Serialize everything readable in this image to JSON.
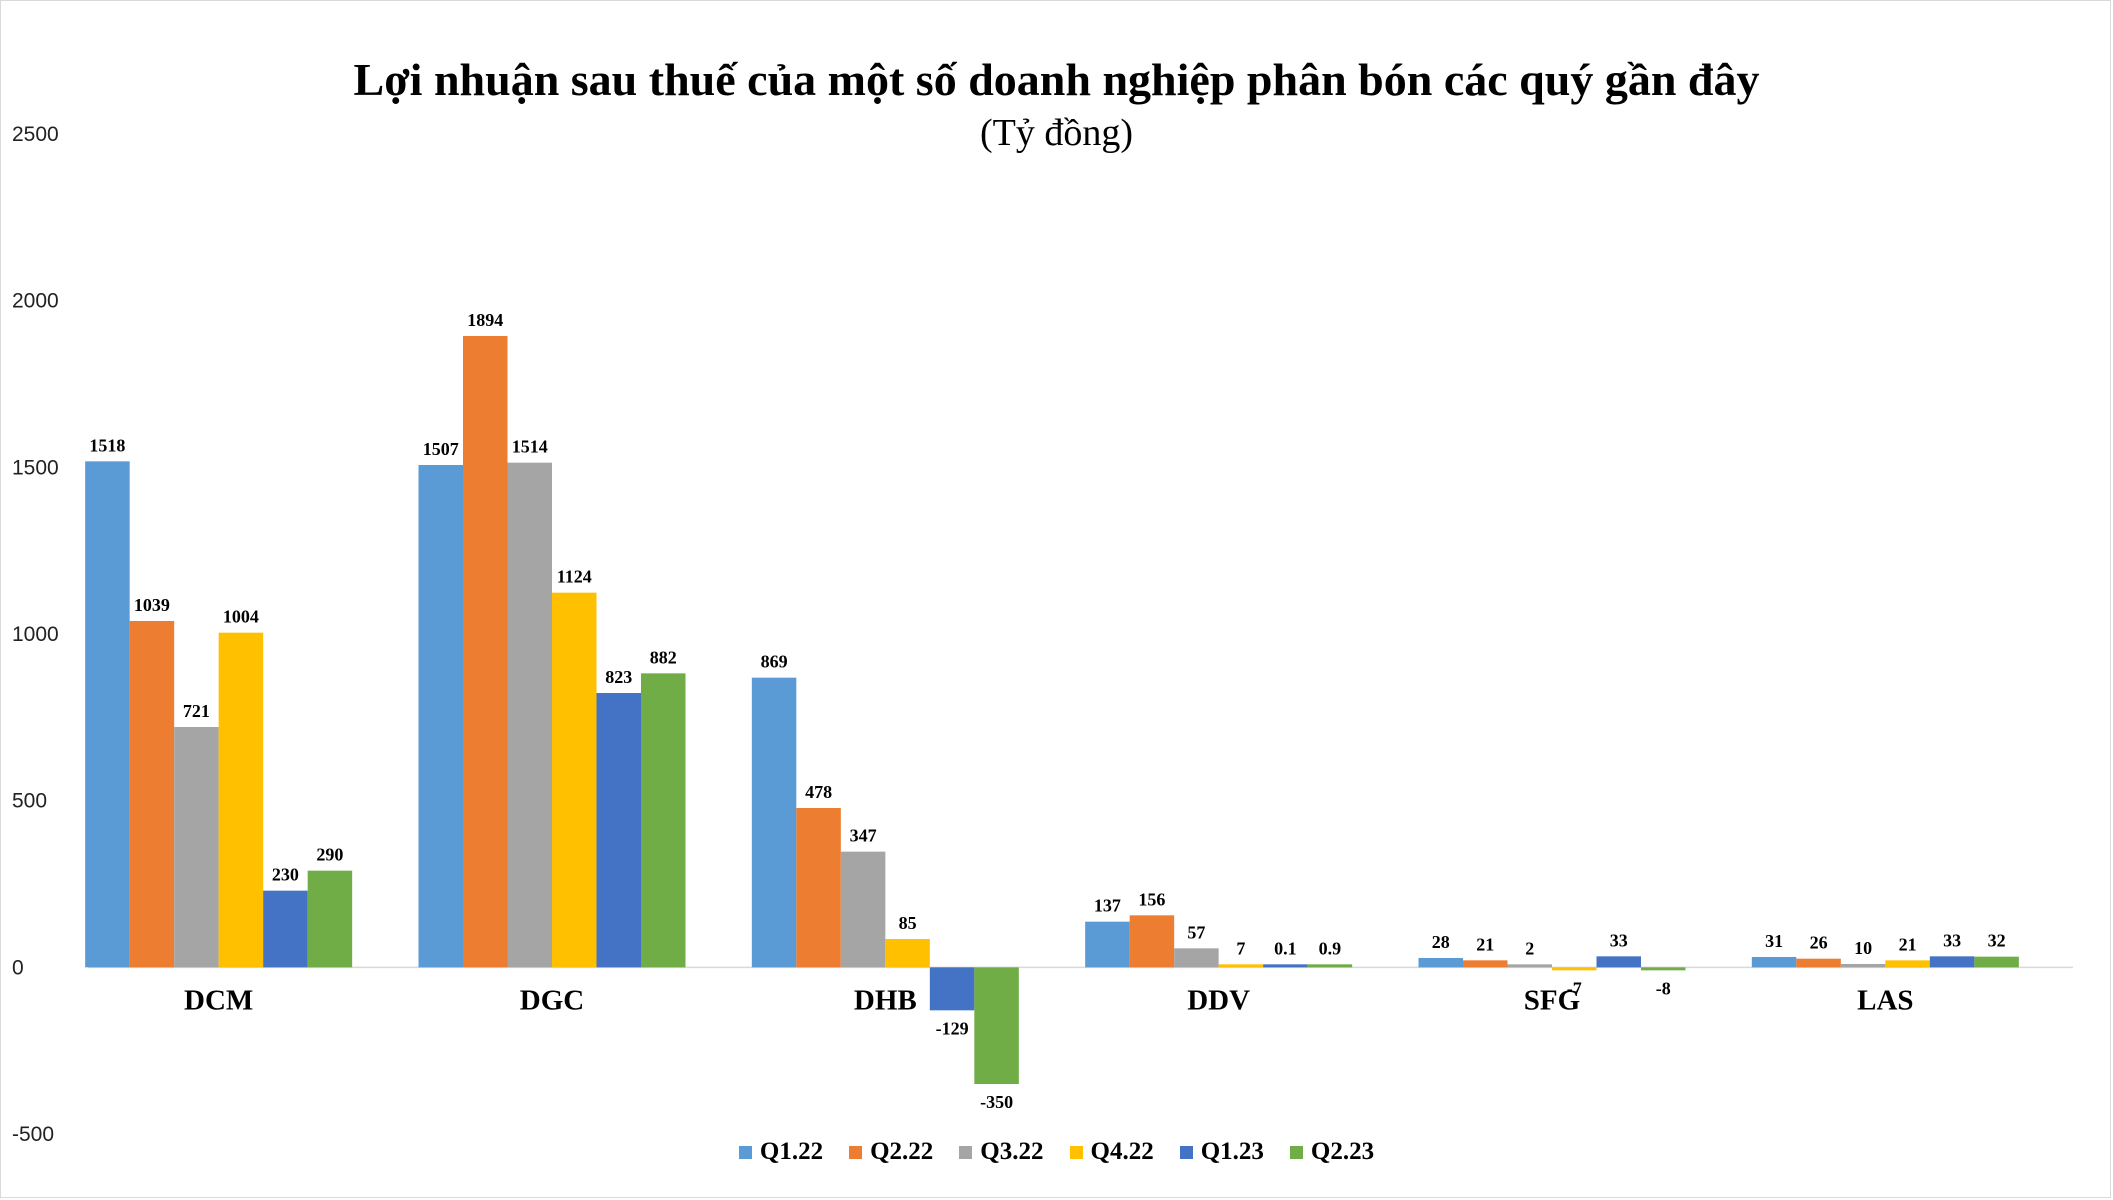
{
  "chart_data": {
    "type": "bar",
    "title": "Lợi nhuận sau thuế của một số doanh nghiệp phân bón các quý gần đây",
    "subtitle": "(Tỷ đồng)",
    "categories": [
      "DCM",
      "DGC",
      "DHB",
      "DDV",
      "SFG",
      "LAS"
    ],
    "series": [
      {
        "name": "Q1.22",
        "color": "#5B9BD5",
        "values": [
          1518,
          1507,
          869,
          137,
          28,
          31
        ],
        "labels": [
          "1518",
          "1507",
          "869",
          "137",
          "28",
          "31"
        ]
      },
      {
        "name": "Q2.22",
        "color": "#ED7D31",
        "values": [
          1039,
          1894,
          478,
          156,
          21,
          26
        ],
        "labels": [
          "1039",
          "1894",
          "478",
          "156",
          "21",
          "26"
        ]
      },
      {
        "name": "Q3.22",
        "color": "#A5A5A5",
        "values": [
          721,
          1514,
          347,
          57,
          2,
          10
        ],
        "labels": [
          "721",
          "1514",
          "347",
          "57",
          "2",
          "10"
        ]
      },
      {
        "name": "Q4.22",
        "color": "#FFC000",
        "values": [
          1004,
          1124,
          85,
          7,
          -7,
          21
        ],
        "labels": [
          "1004",
          "1124",
          "85",
          "7",
          "-7",
          "21"
        ]
      },
      {
        "name": "Q1.23",
        "color": "#4472C4",
        "values": [
          230,
          823,
          -129,
          0.1,
          33,
          33
        ],
        "labels": [
          "230",
          "823",
          "-129",
          "0.1",
          "33",
          "33"
        ]
      },
      {
        "name": "Q2.23",
        "color": "#70AD47",
        "values": [
          290,
          882,
          -350,
          0.9,
          -8,
          32
        ],
        "labels": [
          "290",
          "882",
          "-350",
          "0.9",
          "-8",
          "32"
        ]
      }
    ],
    "yticks": [
      "-500",
      "0",
      "500",
      "1000",
      "1500",
      "2000",
      "2500"
    ],
    "ylim": [
      -500,
      2500
    ],
    "grid": false,
    "legend": "bottom"
  }
}
